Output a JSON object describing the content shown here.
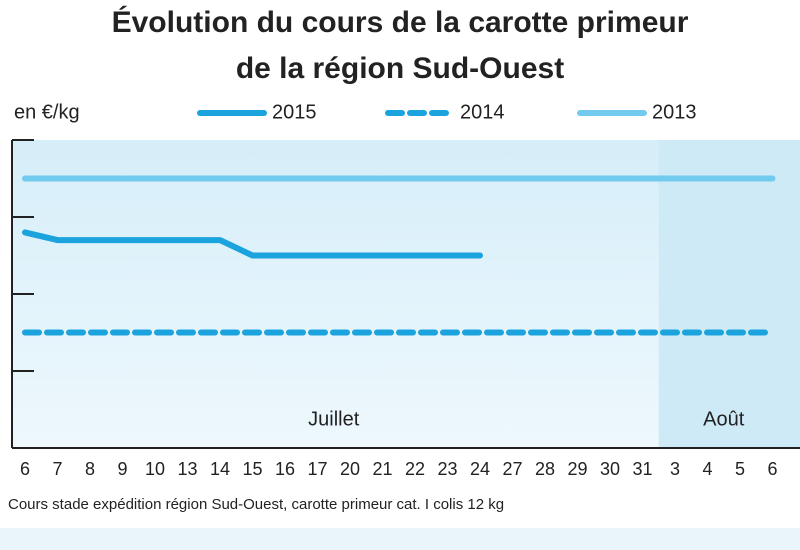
{
  "chart_data": {
    "type": "line",
    "title": [
      "Évolution du cours de la carotte primeur",
      "de la région Sud-Ouest"
    ],
    "y_label": "en €/kg",
    "categories": [
      "6",
      "7",
      "8",
      "9",
      "10",
      "13",
      "14",
      "15",
      "16",
      "17",
      "20",
      "21",
      "22",
      "23",
      "24",
      "27",
      "28",
      "29",
      "30",
      "31",
      "3",
      "4",
      "5",
      "6"
    ],
    "series": [
      {
        "name": "2015",
        "color": "#1ba3dd",
        "style": "solid",
        "values": [
          2.8,
          2.7,
          2.7,
          2.7,
          2.7,
          2.7,
          2.7,
          2.5,
          2.5,
          2.5,
          2.5,
          2.5,
          2.5,
          2.5,
          2.5,
          null,
          null,
          null,
          null,
          null,
          null,
          null,
          null,
          null
        ]
      },
      {
        "name": "2014",
        "color": "#1ba3dd",
        "style": "dashed",
        "values": [
          1.5,
          1.5,
          1.5,
          1.5,
          1.5,
          1.5,
          1.5,
          1.5,
          1.5,
          1.5,
          1.5,
          1.5,
          1.5,
          1.5,
          1.5,
          1.5,
          1.5,
          1.5,
          1.5,
          1.5,
          1.5,
          1.5,
          1.5,
          1.5
        ]
      },
      {
        "name": "2013",
        "color": "#72cbef",
        "style": "solid",
        "values": [
          3.5,
          3.5,
          3.5,
          3.5,
          3.5,
          3.5,
          3.5,
          3.5,
          3.5,
          3.5,
          3.5,
          3.5,
          3.5,
          3.5,
          3.5,
          3.5,
          3.5,
          3.5,
          3.5,
          3.5,
          3.5,
          3.5,
          3.5,
          3.5
        ]
      }
    ],
    "ylim": [
      0,
      4
    ],
    "yticks": [
      0,
      1,
      2,
      3,
      4
    ],
    "annotations": [
      "Juillet",
      "Août"
    ],
    "footnote": "Cours stade expédition région Sud-Ouest, carotte primeur cat. I colis 12 kg"
  }
}
